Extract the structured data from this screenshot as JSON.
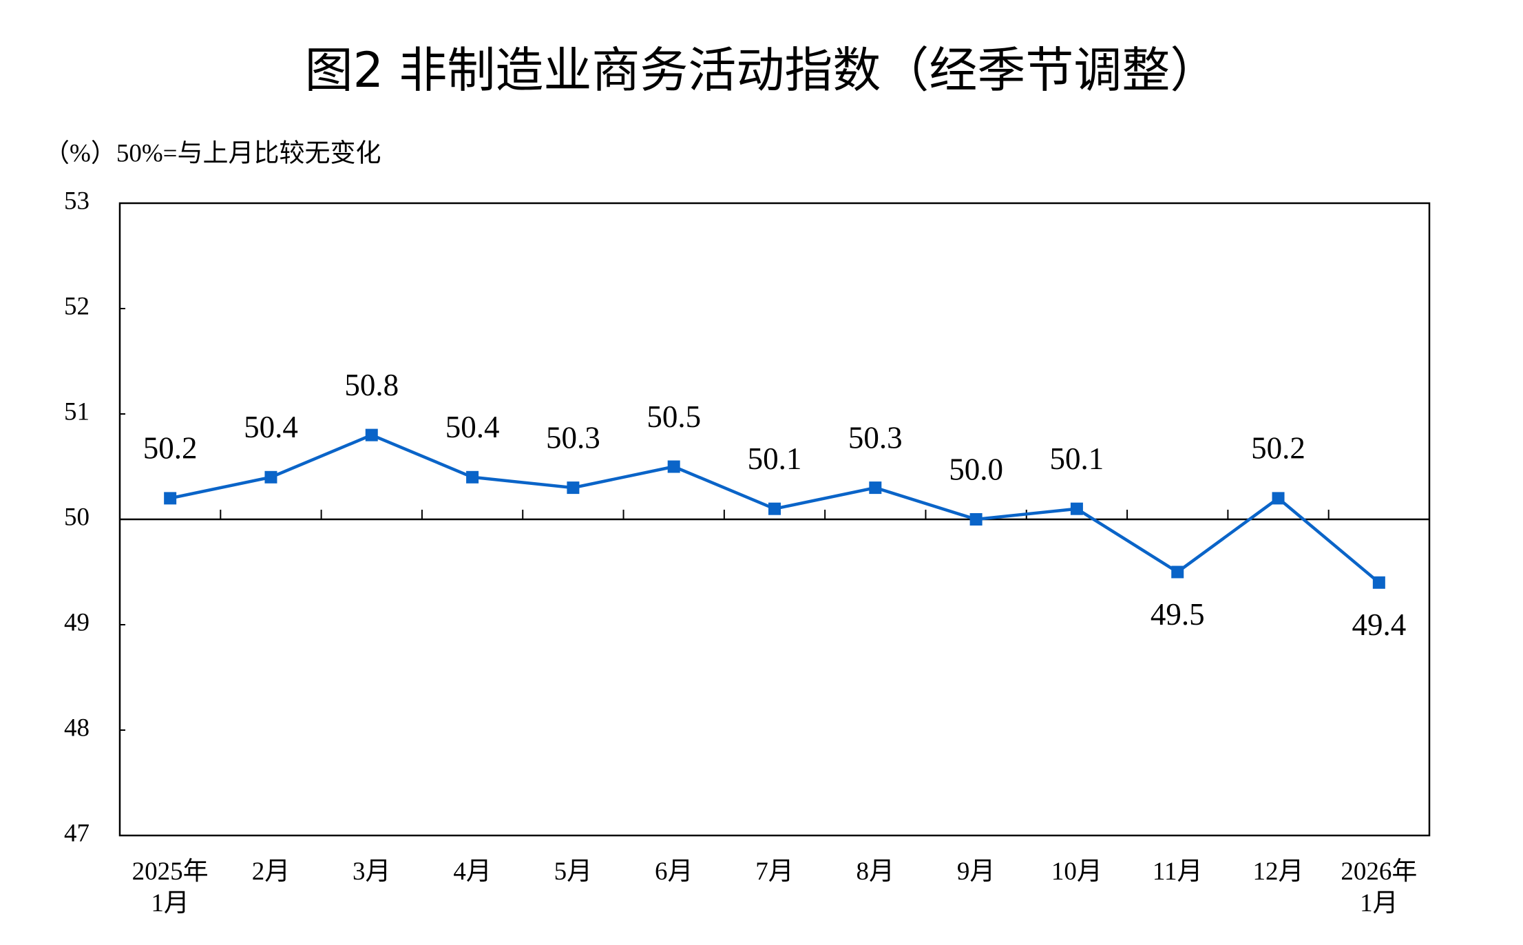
{
  "chart_data": {
    "type": "line",
    "title": "图2  非制造业商务活动指数（经季节调整）",
    "y_axis_label": "（%）50%=与上月比较无变化",
    "categories": [
      "2025年\n1月",
      "2月",
      "3月",
      "4月",
      "5月",
      "6月",
      "7月",
      "8月",
      "9月",
      "10月",
      "11月",
      "12月",
      "2026年\n1月"
    ],
    "series": [
      {
        "name": "非制造业商务活动指数",
        "color": "#0a64c8",
        "values": [
          50.2,
          50.4,
          50.8,
          50.4,
          50.3,
          50.5,
          50.1,
          50.3,
          50.0,
          50.1,
          49.5,
          50.2,
          49.4
        ],
        "value_labels": [
          "50.2",
          "50.4",
          "50.8",
          "50.4",
          "50.3",
          "50.5",
          "50.1",
          "50.3",
          "50.0",
          "50.1",
          "49.5",
          "50.2",
          "49.4"
        ]
      }
    ],
    "ylim": [
      47,
      53
    ],
    "yticks": [
      47,
      48,
      49,
      50,
      51,
      52,
      53
    ],
    "reference_line": 50
  }
}
